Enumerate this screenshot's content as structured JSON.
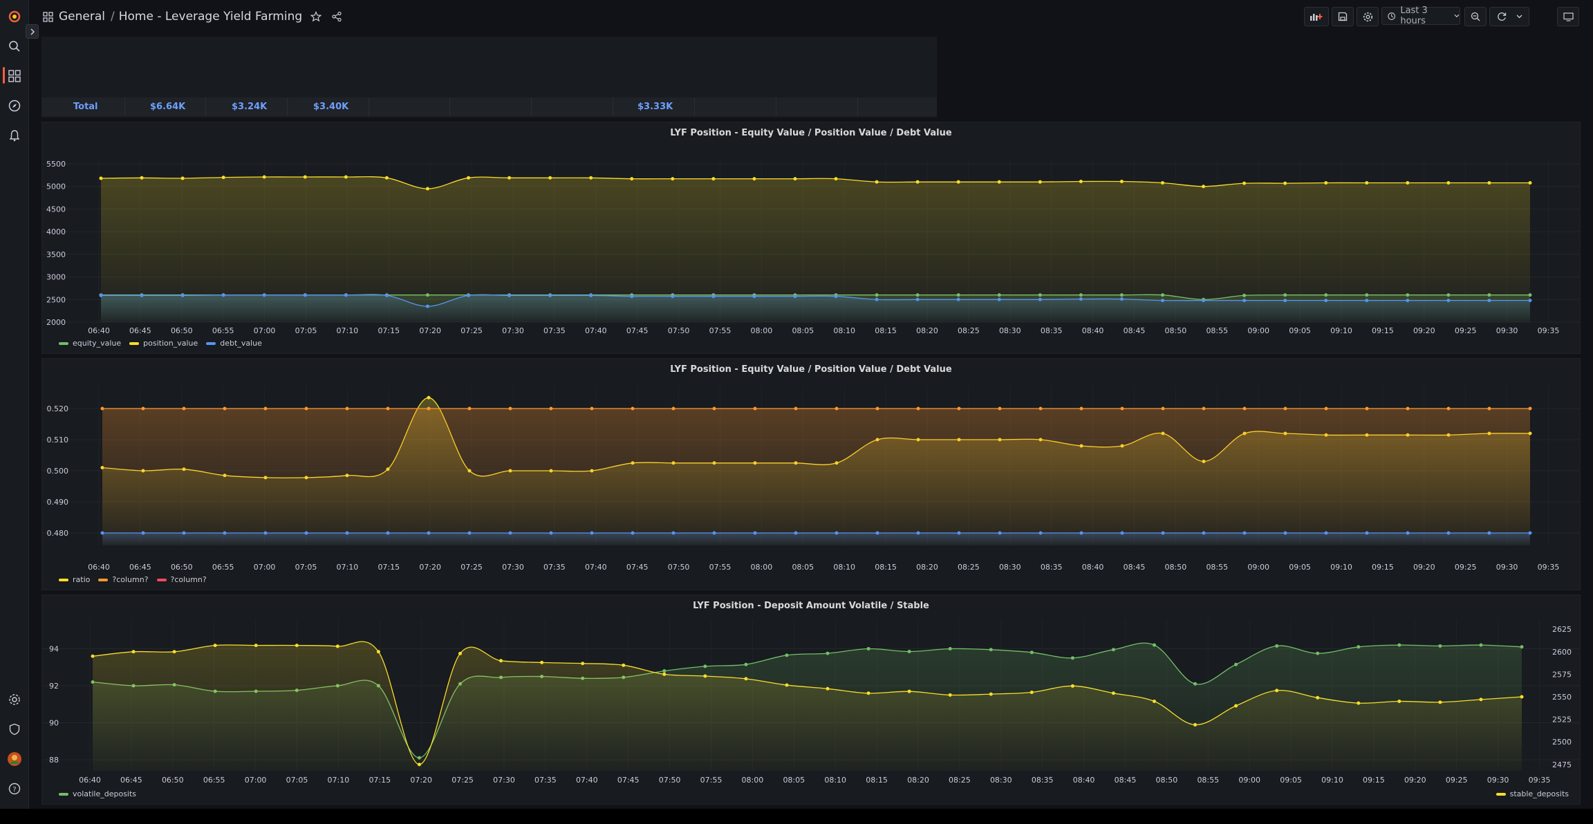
{
  "breadcrumb": {
    "folder": "General",
    "separator": "/",
    "title": "Home - Leverage Yield Farming"
  },
  "toolbar": {
    "time_range": "Last 3 hours"
  },
  "table": {
    "cells": [
      "Total",
      "$6.64K",
      "$3.24K",
      "$3.40K",
      "$3.33K"
    ]
  },
  "x_ticks": [
    "06:40",
    "06:45",
    "06:50",
    "06:55",
    "07:00",
    "07:05",
    "07:10",
    "07:15",
    "07:20",
    "07:25",
    "07:30",
    "07:35",
    "07:40",
    "07:45",
    "07:50",
    "07:55",
    "08:00",
    "08:05",
    "08:10",
    "08:15",
    "08:20",
    "08:25",
    "08:30",
    "08:35",
    "08:40",
    "08:45",
    "08:50",
    "08:55",
    "09:00",
    "09:05",
    "09:10",
    "09:15",
    "09:20",
    "09:25",
    "09:30",
    "09:35"
  ],
  "colors": {
    "green": "#73bf69",
    "yellow": "#fade2a",
    "blue": "#5794f2",
    "orange": "#ff9830",
    "red": "#f2495c",
    "accent": "#f55f3e"
  },
  "icons": [
    "grafana-logo-icon",
    "search-icon",
    "dashboards-icon",
    "explore-icon",
    "alerting-icon",
    "settings-icon",
    "shield-icon",
    "avatar",
    "help-icon"
  ],
  "chart_data": [
    {
      "type": "line",
      "title": "LYF Position - Equity Value / Position Value / Debt Value",
      "ylim": [
        2000,
        5500
      ],
      "y_ticks": [
        "5500",
        "5000",
        "4500",
        "4000",
        "3500",
        "3000",
        "2500",
        "2000"
      ],
      "legend_placement": "bottom-left",
      "x": [
        "06:40",
        "06:45",
        "06:50",
        "06:55",
        "07:00",
        "07:05",
        "07:10",
        "07:15",
        "07:20",
        "07:25",
        "07:30",
        "07:35",
        "07:40",
        "07:45",
        "07:50",
        "07:55",
        "08:00",
        "08:05",
        "08:10",
        "08:15",
        "08:20",
        "08:25",
        "08:30",
        "08:35",
        "08:40",
        "08:45",
        "08:50",
        "08:55",
        "09:00",
        "09:05",
        "09:10",
        "09:15",
        "09:20",
        "09:25",
        "09:30",
        "09:35"
      ],
      "series": [
        {
          "name": "equity_value",
          "color": "#73bf69",
          "values": [
            2600,
            2600,
            2600,
            2600,
            2600,
            2600,
            2600,
            2600,
            2600,
            2600,
            2600,
            2600,
            2600,
            2600,
            2600,
            2600,
            2600,
            2600,
            2600,
            2600,
            2600,
            2600,
            2600,
            2600,
            2600,
            2600,
            2600,
            2500,
            2590,
            2600,
            2600,
            2600,
            2600,
            2600,
            2600,
            2600
          ]
        },
        {
          "name": "position_value",
          "color": "#fade2a",
          "values": [
            5180,
            5190,
            5180,
            5200,
            5210,
            5210,
            5210,
            5190,
            4950,
            5190,
            5190,
            5190,
            5190,
            5170,
            5170,
            5170,
            5170,
            5170,
            5170,
            5100,
            5100,
            5100,
            5100,
            5100,
            5110,
            5110,
            5080,
            5000,
            5070,
            5070,
            5080,
            5080,
            5080,
            5080,
            5080,
            5080
          ]
        },
        {
          "name": "debt_value",
          "color": "#5794f2",
          "values": [
            2590,
            2590,
            2590,
            2600,
            2600,
            2600,
            2600,
            2590,
            2350,
            2590,
            2590,
            2590,
            2590,
            2570,
            2570,
            2570,
            2570,
            2570,
            2570,
            2500,
            2500,
            2500,
            2500,
            2500,
            2510,
            2510,
            2480,
            2480,
            2480,
            2480,
            2480,
            2480,
            2480,
            2480,
            2480,
            2480
          ]
        }
      ]
    },
    {
      "type": "line",
      "title": "LYF Position - Equity Value / Position Value / Debt Value",
      "ylim": [
        0.476,
        0.526
      ],
      "y_ticks": [
        "0.520",
        "0.510",
        "0.500",
        "0.490",
        "0.480"
      ],
      "legend_placement": "bottom-left",
      "x": [
        "06:40",
        "06:45",
        "06:50",
        "06:55",
        "07:00",
        "07:05",
        "07:10",
        "07:15",
        "07:20",
        "07:25",
        "07:30",
        "07:35",
        "07:40",
        "07:45",
        "07:50",
        "07:55",
        "08:00",
        "08:05",
        "08:10",
        "08:15",
        "08:20",
        "08:25",
        "08:30",
        "08:35",
        "08:40",
        "08:45",
        "08:50",
        "08:55",
        "09:00",
        "09:05",
        "09:10",
        "09:15",
        "09:20",
        "09:25",
        "09:30",
        "09:35"
      ],
      "series": [
        {
          "name": "ratio",
          "color": "#fade2a",
          "values": [
            0.501,
            0.5,
            0.5005,
            0.4985,
            0.4978,
            0.4978,
            0.4985,
            0.5005,
            0.5235,
            0.5,
            0.5,
            0.5,
            0.5,
            0.5025,
            0.5025,
            0.5025,
            0.5025,
            0.5025,
            0.5025,
            0.51,
            0.51,
            0.51,
            0.51,
            0.51,
            0.508,
            0.508,
            0.512,
            0.503,
            0.512,
            0.512,
            0.5115,
            0.5115,
            0.5115,
            0.5115,
            0.512,
            0.512
          ]
        },
        {
          "name": "?column?",
          "color": "#ff9830",
          "values": [
            0.52,
            0.52,
            0.52,
            0.52,
            0.52,
            0.52,
            0.52,
            0.52,
            0.52,
            0.52,
            0.52,
            0.52,
            0.52,
            0.52,
            0.52,
            0.52,
            0.52,
            0.52,
            0.52,
            0.52,
            0.52,
            0.52,
            0.52,
            0.52,
            0.52,
            0.52,
            0.52,
            0.52,
            0.52,
            0.52,
            0.52,
            0.52,
            0.52,
            0.52,
            0.52,
            0.52
          ]
        },
        {
          "name": "?column?",
          "color": "#5794f2",
          "values": [
            0.48,
            0.48,
            0.48,
            0.48,
            0.48,
            0.48,
            0.48,
            0.48,
            0.48,
            0.48,
            0.48,
            0.48,
            0.48,
            0.48,
            0.48,
            0.48,
            0.48,
            0.48,
            0.48,
            0.48,
            0.48,
            0.48,
            0.48,
            0.48,
            0.48,
            0.48,
            0.48,
            0.48,
            0.48,
            0.48,
            0.48,
            0.48,
            0.48,
            0.48,
            0.48,
            0.48
          ]
        }
      ],
      "legend": [
        {
          "name": "ratio",
          "color": "#fade2a"
        },
        {
          "name": "?column?",
          "color": "#ff9830"
        },
        {
          "name": "?column?",
          "color": "#f2495c"
        }
      ]
    },
    {
      "type": "line",
      "title": "LYF Position - Deposit Amount Volatile / Stable",
      "ylim": [
        87.4,
        95.4
      ],
      "y_ticks": [
        "94",
        "92",
        "90",
        "88"
      ],
      "y2lim": [
        2468,
        2632
      ],
      "y2_ticks": [
        "2625",
        "2600",
        "2575",
        "2550",
        "2525",
        "2500",
        "2475"
      ],
      "legend_placement": "bottom",
      "x": [
        "06:40",
        "06:45",
        "06:50",
        "06:55",
        "07:00",
        "07:05",
        "07:10",
        "07:15",
        "07:20",
        "07:25",
        "07:30",
        "07:35",
        "07:40",
        "07:45",
        "07:50",
        "07:55",
        "08:00",
        "08:05",
        "08:10",
        "08:15",
        "08:20",
        "08:25",
        "08:30",
        "08:35",
        "08:40",
        "08:45",
        "08:50",
        "08:55",
        "09:00",
        "09:05",
        "09:10",
        "09:15",
        "09:20",
        "09:25",
        "09:30",
        "09:35"
      ],
      "series": [
        {
          "name": "volatile_deposits",
          "color": "#73bf69",
          "axis": "left",
          "values": [
            92.2,
            92.0,
            92.05,
            91.7,
            91.7,
            91.75,
            92.0,
            92.0,
            88.1,
            92.1,
            92.45,
            92.5,
            92.4,
            92.45,
            92.8,
            93.05,
            93.15,
            93.65,
            93.75,
            94.0,
            93.85,
            94.0,
            93.95,
            93.8,
            93.5,
            93.95,
            94.2,
            92.1,
            93.15,
            94.15,
            93.75,
            94.1,
            94.2,
            94.15,
            94.2,
            94.1
          ]
        },
        {
          "name": "stable_deposits",
          "color": "#fade2a",
          "axis": "right",
          "values": [
            2595,
            2600,
            2600,
            2607,
            2607,
            2607,
            2606,
            2600,
            2475,
            2598,
            2590,
            2588,
            2587,
            2585,
            2575,
            2573,
            2570,
            2563,
            2559,
            2554,
            2556,
            2552,
            2553,
            2555,
            2562,
            2554,
            2545,
            2519,
            2540,
            2557,
            2549,
            2543,
            2545,
            2544,
            2547,
            2550
          ]
        }
      ]
    }
  ]
}
